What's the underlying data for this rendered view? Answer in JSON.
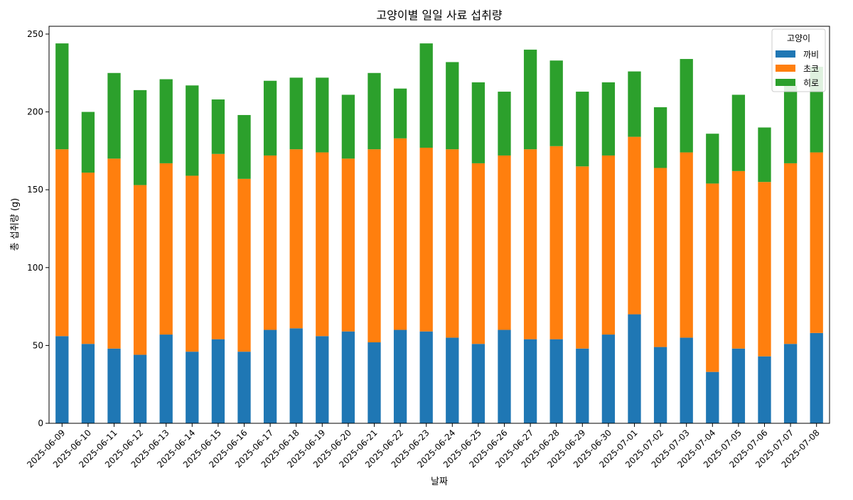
{
  "chart_data": {
    "type": "bar",
    "stacked": true,
    "title": "고양이별 일일 사료 섭취량",
    "xlabel": "날짜",
    "ylabel": "총 섭취량 (g)",
    "ylim": [
      0,
      255
    ],
    "yticks": [
      0,
      50,
      100,
      150,
      200,
      250
    ],
    "grid": false,
    "legend": {
      "title": "고양이",
      "placement": "top-right"
    },
    "categories": [
      "2025-06-09",
      "2025-06-10",
      "2025-06-11",
      "2025-06-12",
      "2025-06-13",
      "2025-06-14",
      "2025-06-15",
      "2025-06-16",
      "2025-06-17",
      "2025-06-18",
      "2025-06-19",
      "2025-06-20",
      "2025-06-21",
      "2025-06-22",
      "2025-06-23",
      "2025-06-24",
      "2025-06-25",
      "2025-06-26",
      "2025-06-27",
      "2025-06-28",
      "2025-06-29",
      "2025-06-30",
      "2025-07-01",
      "2025-07-02",
      "2025-07-03",
      "2025-07-04",
      "2025-07-05",
      "2025-07-06",
      "2025-07-07",
      "2025-07-08"
    ],
    "series": [
      {
        "name": "까비",
        "color": "#1f77b4",
        "values": [
          56,
          51,
          48,
          44,
          57,
          46,
          54,
          46,
          60,
          61,
          56,
          59,
          52,
          60,
          59,
          55,
          51,
          60,
          54,
          54,
          48,
          57,
          70,
          49,
          55,
          33,
          48,
          43,
          51,
          58
        ]
      },
      {
        "name": "초코",
        "color": "#ff7f0e",
        "values": [
          120,
          110,
          122,
          109,
          110,
          113,
          119,
          111,
          112,
          115,
          118,
          111,
          124,
          123,
          118,
          121,
          116,
          112,
          122,
          124,
          117,
          115,
          114,
          115,
          119,
          121,
          114,
          112,
          116,
          116
        ]
      },
      {
        "name": "히로",
        "color": "#2ca02c",
        "values": [
          68,
          39,
          55,
          61,
          54,
          58,
          35,
          41,
          48,
          46,
          48,
          41,
          49,
          32,
          67,
          56,
          52,
          41,
          64,
          55,
          48,
          47,
          42,
          39,
          60,
          32,
          49,
          35,
          50,
          55
        ]
      }
    ]
  }
}
